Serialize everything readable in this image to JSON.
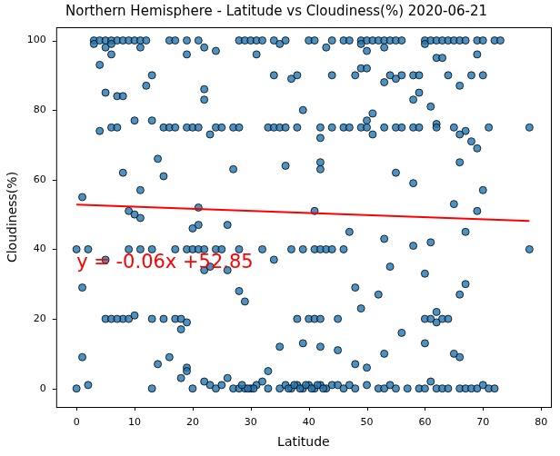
{
  "chart_data": {
    "type": "scatter",
    "title": "Northern Hemisphere - Latitude vs Cloudiness(%) 2020-06-21",
    "x_label": "Latitude",
    "y_label": "Cloudiness(%)",
    "xlim": [
      -3.5,
      81.7
    ],
    "ylim": [
      -5.3,
      103.8
    ],
    "xticks": [
      0,
      10,
      20,
      30,
      40,
      50,
      60,
      70,
      80
    ],
    "yticks": [
      0,
      20,
      40,
      60,
      80,
      100
    ],
    "grid": false,
    "series": [
      {
        "type": "scatter",
        "marker": "circle",
        "color": "#1f77b4",
        "x": [
          3,
          4,
          5,
          6,
          7,
          8,
          9,
          10,
          11,
          12,
          16,
          17,
          19,
          21,
          28,
          29,
          30,
          31,
          32,
          34,
          36,
          40,
          41,
          44,
          46,
          47,
          49,
          50,
          51,
          52,
          53,
          54,
          55,
          56,
          60,
          61,
          62,
          63,
          64,
          65,
          66,
          67,
          69,
          70,
          72,
          73,
          3,
          5,
          6,
          11,
          22,
          24,
          35,
          43,
          49,
          53,
          60,
          6,
          19,
          31,
          50,
          62,
          63,
          69,
          4,
          49,
          50,
          34,
          44,
          48,
          54,
          56,
          58,
          59,
          64,
          68,
          70,
          13,
          5,
          7,
          8,
          12,
          22,
          37,
          38,
          53,
          55,
          58,
          59,
          66,
          10,
          13,
          22,
          39,
          51,
          50,
          61,
          62,
          4,
          6,
          7,
          15,
          16,
          17,
          19,
          20,
          21,
          23,
          24,
          25,
          27,
          28,
          33,
          34,
          35,
          36,
          38,
          42,
          44,
          46,
          47,
          49,
          50,
          51,
          53,
          55,
          56,
          58,
          59,
          62,
          65,
          67,
          71,
          78,
          42,
          66,
          68,
          69,
          8,
          14,
          15,
          27,
          36,
          42,
          42,
          55,
          58,
          66,
          70,
          65,
          1,
          9,
          10,
          11,
          21,
          69,
          41,
          11,
          20,
          21,
          26,
          47,
          61,
          67,
          0,
          2,
          5,
          9,
          11,
          13,
          17,
          19,
          20,
          21,
          22,
          24,
          25,
          28,
          32,
          37,
          39,
          41,
          42,
          43,
          44,
          46,
          53,
          54,
          58,
          60,
          78,
          22,
          23,
          26,
          34,
          1,
          8,
          5,
          6,
          7,
          9,
          10,
          13,
          15,
          17,
          18,
          19,
          18,
          28,
          29,
          38,
          40,
          41,
          42,
          45,
          48,
          49,
          52,
          60,
          62,
          62,
          63,
          64,
          66,
          67,
          61,
          1,
          14,
          16,
          19,
          18,
          26,
          33,
          35,
          39,
          42,
          45,
          48,
          50,
          53,
          56,
          60,
          65,
          66,
          0,
          2,
          13,
          19,
          20,
          22,
          23,
          24,
          25,
          27,
          28,
          29,
          30,
          31,
          32,
          33,
          35,
          36,
          37,
          38,
          39,
          40,
          41,
          42,
          43,
          44,
          45,
          46,
          47,
          48,
          50,
          52,
          53,
          54,
          55,
          57,
          59,
          60,
          61,
          62,
          63,
          64,
          66,
          67,
          68,
          69,
          70,
          71,
          72,
          36.5,
          37.5,
          38.5,
          39.5,
          40.5,
          41.5,
          42.5,
          30.5,
          29.5,
          28.5
        ],
        "values": [
          100,
          100,
          100,
          100,
          100,
          100,
          100,
          100,
          100,
          100,
          100,
          100,
          100,
          100,
          100,
          100,
          100,
          100,
          100,
          100,
          100,
          100,
          100,
          100,
          100,
          100,
          100,
          100,
          100,
          100,
          100,
          100,
          100,
          100,
          100,
          100,
          100,
          100,
          100,
          100,
          100,
          100,
          100,
          100,
          100,
          100,
          99,
          98,
          99,
          98,
          98,
          97,
          99,
          98,
          99,
          98,
          99,
          96,
          96,
          96,
          97,
          95,
          95,
          96,
          93,
          92,
          92,
          90,
          90,
          90,
          90,
          90,
          90,
          90,
          90,
          90,
          90,
          90,
          85,
          84,
          84,
          87,
          86,
          89,
          90,
          88,
          89,
          83,
          85,
          87,
          77,
          77,
          83,
          80,
          79,
          77,
          81,
          76,
          74,
          75,
          75,
          75,
          75,
          75,
          75,
          75,
          75,
          73,
          75,
          75,
          75,
          75,
          75,
          75,
          75,
          75,
          75,
          75,
          75,
          75,
          75,
          75,
          75,
          73,
          75,
          75,
          75,
          75,
          75,
          75,
          75,
          74,
          75,
          75,
          72,
          73,
          71,
          69,
          62,
          66,
          61,
          63,
          64,
          65,
          63,
          62,
          59,
          65,
          57,
          53,
          55,
          51,
          50,
          57,
          52,
          51,
          51,
          49,
          46,
          47,
          47,
          45,
          42,
          45,
          40,
          40,
          37,
          40,
          40,
          40,
          40,
          40,
          40,
          40,
          40,
          40,
          40,
          40,
          40,
          40,
          40,
          40,
          40,
          40,
          40,
          40,
          43,
          35,
          41,
          33,
          40,
          34,
          35,
          34,
          37,
          29,
          20,
          20,
          20,
          20,
          20,
          21,
          20,
          20,
          20,
          20,
          19,
          17,
          28,
          25,
          20,
          20,
          20,
          20,
          20,
          29,
          23,
          27,
          20,
          19,
          22,
          20,
          20,
          27,
          30,
          20,
          9,
          7,
          9,
          6,
          3,
          3,
          5,
          12,
          13,
          12,
          11,
          7,
          6,
          10,
          16,
          13,
          10,
          9,
          0,
          1,
          0,
          5,
          0,
          2,
          1,
          0,
          1,
          0,
          0,
          0,
          0,
          1,
          2,
          0,
          0,
          1,
          0,
          1,
          0,
          1,
          0,
          1,
          0,
          1,
          1,
          0,
          1,
          0,
          1,
          0,
          0,
          1,
          0,
          0,
          0,
          0,
          2,
          0,
          0,
          0,
          0,
          0,
          0,
          0,
          1,
          0,
          0,
          0,
          1,
          0,
          1,
          0,
          1,
          0,
          0,
          0,
          1
        ]
      },
      {
        "type": "line",
        "line_style": "solid",
        "color": "#ff0000",
        "x": [
          0,
          78
        ],
        "values": [
          52.85,
          48.17
        ]
      }
    ],
    "annotations": [
      {
        "text": "y = -0.06x +52.85",
        "x": 0,
        "y": 36,
        "color": "#ff0000"
      }
    ]
  }
}
